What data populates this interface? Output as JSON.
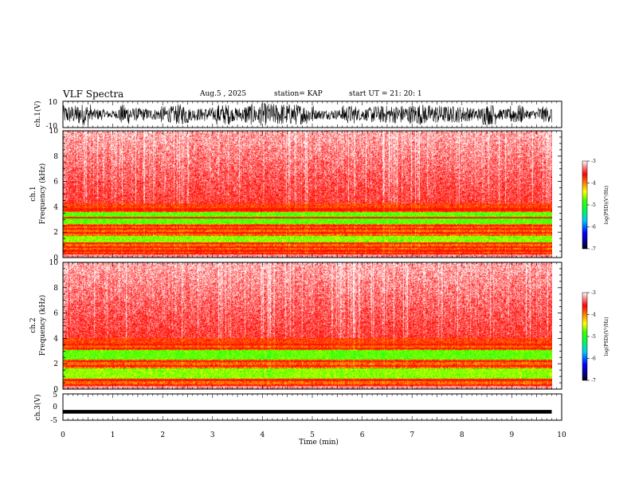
{
  "header": {
    "title": "VLF Spectra",
    "date": "Aug.5 , 2025",
    "station": "station= KAP",
    "start": "start UT = 21: 20: 1"
  },
  "chart_data": [
    {
      "type": "line",
      "name": "ch1-waveform",
      "ylabel": "ch.1(V)",
      "ylim": [
        -10,
        10
      ],
      "yticks": [
        "10",
        "-10"
      ],
      "xlim": [
        0,
        10
      ],
      "series": [
        {
          "name": "ch.1",
          "description": "noisy waveform amplitude",
          "amplitude_range": [
            -9,
            9
          ]
        }
      ]
    },
    {
      "type": "heatmap",
      "name": "ch1-spectrogram",
      "ylabel_line1": "ch.1",
      "ylabel_line2": "Frequency (kHz)",
      "ylim": [
        0,
        10
      ],
      "yticks": [
        "0",
        "2",
        "4",
        "6",
        "8",
        "10"
      ],
      "xlim": [
        0,
        9.8
      ],
      "colorbar": {
        "label": "log(PSD)(V²/Hz)",
        "range": [
          -7,
          -3
        ],
        "ticks": [
          "-3",
          "-4",
          "-5",
          "-6",
          "-7"
        ]
      },
      "features": {
        "high_power_below_kHz": 4.3,
        "green_band_kHz": [
          2.6,
          3.6
        ],
        "green_band2_kHz": [
          1.1,
          1.7
        ],
        "lines_kHz": [
          0.3,
          0.5,
          0.8,
          1.1,
          1.95,
          2.25,
          2.5,
          3.15,
          3.7,
          3.85
        ]
      }
    },
    {
      "type": "heatmap",
      "name": "ch2-spectrogram",
      "ylabel_line1": "ch.2",
      "ylabel_line2": "Frequency (kHz)",
      "ylim": [
        0,
        10
      ],
      "yticks": [
        "0",
        "2",
        "4",
        "6",
        "8",
        "10"
      ],
      "xlim": [
        0,
        9.8
      ],
      "colorbar": {
        "label": "log(PSD)(V²/Hz)",
        "range": [
          -7,
          -3
        ],
        "ticks": [
          "-3",
          "-4",
          "-5",
          "-6",
          "-7"
        ]
      },
      "features": {
        "high_power_below_kHz": 4.0,
        "green_band_kHz": [
          2.3,
          3.1
        ],
        "green_band2_kHz": [
          0.8,
          1.6
        ],
        "lines_kHz": [
          0.3,
          0.7,
          1.8,
          2.2,
          3.2,
          3.5
        ]
      }
    },
    {
      "type": "line",
      "name": "ch3-waveform",
      "ylabel": "ch.3(V)",
      "ylim": [
        -5,
        5
      ],
      "yticks": [
        "5",
        "0",
        "-5"
      ],
      "xlim": [
        0,
        10
      ],
      "series": [
        {
          "name": "ch.3",
          "description": "near-constant waveform",
          "center": -1.8,
          "thickness": 0.7
        }
      ]
    }
  ],
  "xaxis": {
    "label": "Time (min)",
    "ticks": [
      "0",
      "1",
      "2",
      "3",
      "4",
      "5",
      "6",
      "7",
      "8",
      "9",
      "10"
    ],
    "range": [
      0,
      10
    ]
  }
}
